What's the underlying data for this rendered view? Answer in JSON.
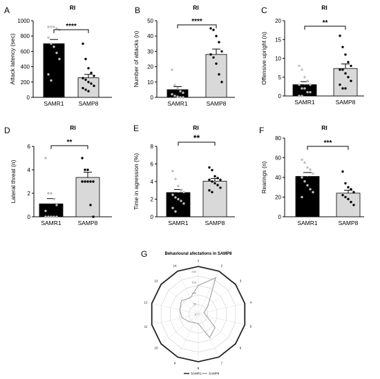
{
  "chart_data": [
    {
      "id": "A",
      "panel_label": "A",
      "type": "bar",
      "title": "RI",
      "ylabel": "Attack latency (sec)",
      "ylim": [
        0,
        1000
      ],
      "yticks": [
        0,
        200,
        400,
        600,
        800,
        1000
      ],
      "categories": [
        "SAMR1",
        "SAMP8"
      ],
      "values": [
        700,
        255
      ],
      "errors": [
        55,
        45
      ],
      "colors": [
        "#000000",
        "#d9d9d9"
      ],
      "significance": "****",
      "points": [
        [
          920,
          920,
          920,
          900,
          880,
          780,
          700,
          660,
          580,
          500,
          300,
          220
        ],
        [
          700,
          500,
          380,
          320,
          280,
          250,
          230,
          200,
          180,
          150,
          120,
          100,
          80
        ]
      ]
    },
    {
      "id": "B",
      "panel_label": "B",
      "type": "bar",
      "title": "RI",
      "ylabel": "Number of attacks (n)",
      "ylim": [
        0,
        50
      ],
      "yticks": [
        0,
        10,
        20,
        30,
        40,
        50
      ],
      "categories": [
        "SAMR1",
        "SAMP8"
      ],
      "values": [
        5,
        28
      ],
      "errors": [
        2,
        3.5
      ],
      "colors": [
        "#000000",
        "#d9d9d9"
      ],
      "significance": "****",
      "points": [
        [
          18,
          8,
          6,
          4,
          3,
          2,
          1,
          0.5,
          0,
          0
        ],
        [
          45,
          44,
          40,
          36,
          30,
          28,
          26,
          22,
          15,
          10
        ]
      ]
    },
    {
      "id": "C",
      "panel_label": "C",
      "type": "bar",
      "title": "RI",
      "ylabel": "Offensive upright (n)",
      "ylim": [
        0,
        20
      ],
      "yticks": [
        0,
        5,
        10,
        15,
        20
      ],
      "categories": [
        "SAMR1",
        "SAMP8"
      ],
      "values": [
        3,
        7.3
      ],
      "errors": [
        0.8,
        1.2
      ],
      "colors": [
        "#000000",
        "#d9d9d9"
      ],
      "significance": "**",
      "points": [
        [
          8,
          7,
          5,
          4,
          3,
          3,
          2,
          2,
          1,
          1,
          0,
          0
        ],
        [
          16,
          13,
          11,
          9,
          8,
          7,
          7,
          6,
          5,
          4,
          3,
          2,
          2
        ]
      ]
    },
    {
      "id": "D",
      "panel_label": "D",
      "type": "bar",
      "title": "RI",
      "ylabel": "Lateral threat (n)",
      "ylim": [
        0,
        6
      ],
      "yticks": [
        0,
        2,
        4,
        6
      ],
      "categories": [
        "SAMR1",
        "SAMP8"
      ],
      "values": [
        1.1,
        3.35
      ],
      "errors": [
        0.45,
        0.45
      ],
      "colors": [
        "#000000",
        "#d9d9d9"
      ],
      "significance": "**",
      "points": [
        [
          5,
          2,
          2,
          1.5,
          1,
          0.5,
          0,
          0,
          0,
          0,
          0
        ],
        [
          5,
          4,
          4,
          3,
          3,
          3,
          3,
          3,
          1,
          0
        ]
      ]
    },
    {
      "id": "E",
      "panel_label": "E",
      "type": "bar",
      "title": "RI",
      "ylabel": "Time in agression (%)",
      "ylim": [
        0,
        8
      ],
      "yticks": [
        0,
        2,
        4,
        6,
        8
      ],
      "categories": [
        "SAMR1",
        "SAMP8"
      ],
      "values": [
        2.75,
        4.05
      ],
      "errors": [
        0.35,
        0.3
      ],
      "colors": [
        "#000000",
        "#d9d9d9"
      ],
      "significance": "**",
      "points": [
        [
          5.2,
          4.3,
          3.5,
          3,
          2.8,
          2.5,
          2.2,
          2,
          1.8,
          1.5,
          1,
          0.6
        ],
        [
          5.6,
          5.3,
          4.6,
          4.4,
          4.2,
          4.2,
          4,
          3.8,
          3.6,
          3.3,
          3,
          2.8
        ]
      ]
    },
    {
      "id": "F",
      "panel_label": "F",
      "type": "bar",
      "title": "RI",
      "ylabel": "Rearings (n)",
      "ylim": [
        0,
        80
      ],
      "yticks": [
        0,
        20,
        40,
        60,
        80
      ],
      "categories": [
        "SAMR1",
        "SAMP8"
      ],
      "values": [
        41,
        24
      ],
      "errors": [
        4,
        3
      ],
      "colors": [
        "#000000",
        "#d9d9d9"
      ],
      "significance": "***",
      "points": [
        [
          58,
          55,
          50,
          48,
          44,
          40,
          36,
          32,
          28,
          25,
          20
        ],
        [
          46,
          34,
          30,
          28,
          25,
          22,
          20,
          18,
          15,
          12
        ]
      ]
    },
    {
      "id": "G",
      "panel_label": "G",
      "type": "radar",
      "title": "Behavioural afectations in SAMP8",
      "axes": [
        "1",
        "2",
        "3",
        "4",
        "5",
        "6",
        "7",
        "8",
        "9",
        "10",
        "11",
        "12",
        "13",
        "14"
      ],
      "ring_labels": [
        "0",
        "50",
        "100",
        "150",
        "200"
      ],
      "rmax": 200,
      "series": [
        {
          "name": "SAMR1",
          "color": "#222222",
          "values": [
            100,
            100,
            100,
            100,
            100,
            100,
            100,
            100,
            100,
            100,
            100,
            100,
            100,
            100
          ]
        },
        {
          "name": "SAMP8",
          "color": "#a6a6a6",
          "values": [
            60,
            85,
            25,
            12,
            18,
            45,
            55,
            20,
            20,
            25,
            35,
            40,
            45,
            38
          ]
        }
      ]
    }
  ]
}
